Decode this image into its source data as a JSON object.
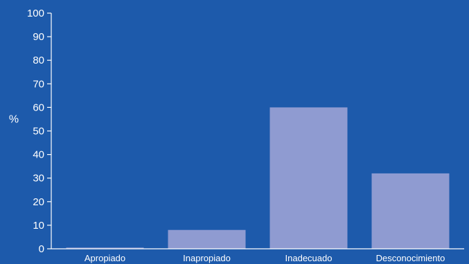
{
  "chart_data": {
    "type": "bar",
    "categories": [
      "Apropiado",
      "Inapropiado",
      "Inadecuado",
      "Desconocimiento"
    ],
    "values": [
      0.5,
      8,
      60,
      32
    ],
    "ylabel": "%",
    "xlabel": "",
    "title": "",
    "ylim": [
      0,
      100
    ],
    "yticks": [
      0,
      10,
      20,
      30,
      40,
      50,
      60,
      70,
      80,
      90,
      100
    ],
    "grid": false,
    "legend": "none",
    "colors": {
      "background": "#1d5aab",
      "bar": "#8f9bd1",
      "axis": "#ffffff",
      "text": "#ffffff"
    }
  }
}
